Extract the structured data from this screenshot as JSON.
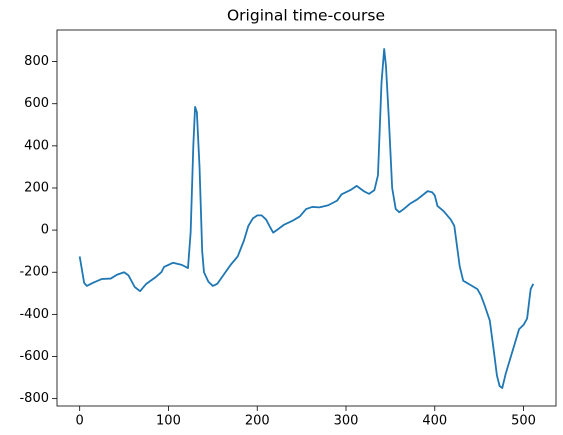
{
  "chart_data": {
    "type": "line",
    "title": "Original time-course",
    "x": [
      0,
      5,
      8,
      15,
      25,
      35,
      42,
      50,
      55,
      62,
      68,
      75,
      85,
      92,
      95,
      105,
      115,
      122,
      125,
      128,
      130,
      132,
      135,
      138,
      140,
      145,
      150,
      155,
      160,
      170,
      178,
      185,
      190,
      195,
      200,
      205,
      210,
      215,
      218,
      222,
      230,
      240,
      248,
      255,
      262,
      270,
      280,
      290,
      295,
      305,
      312,
      320,
      326,
      332,
      336,
      340,
      343,
      345,
      348,
      352,
      356,
      360,
      365,
      372,
      380,
      386,
      392,
      397,
      400,
      403,
      410,
      418,
      422,
      428,
      432,
      440,
      448,
      452,
      456,
      462,
      467,
      470,
      473,
      476,
      480,
      485,
      490,
      495,
      500,
      504,
      508,
      511
    ],
    "values": [
      -125,
      -250,
      -265,
      -250,
      -232,
      -230,
      -212,
      -200,
      -215,
      -270,
      -290,
      -255,
      -225,
      -200,
      -175,
      -155,
      -165,
      -180,
      -10,
      400,
      585,
      560,
      300,
      -100,
      -200,
      -245,
      -265,
      -255,
      -225,
      -165,
      -125,
      -50,
      20,
      55,
      70,
      70,
      50,
      10,
      -12,
      0,
      25,
      45,
      65,
      100,
      110,
      108,
      118,
      140,
      170,
      190,
      210,
      185,
      172,
      190,
      260,
      700,
      860,
      780,
      550,
      200,
      100,
      85,
      100,
      125,
      145,
      165,
      185,
      180,
      165,
      115,
      90,
      50,
      20,
      -170,
      -240,
      -260,
      -280,
      -310,
      -355,
      -430,
      -590,
      -690,
      -740,
      -750,
      -680,
      -610,
      -540,
      -470,
      -450,
      -420,
      -280,
      -255
    ],
    "color": "#1f77b4",
    "xlim": [
      -25.55,
      536.55
    ],
    "xticks": [
      0,
      100,
      200,
      300,
      400,
      500
    ],
    "ylim": [
      -835,
      950
    ],
    "yticks": [
      -800,
      -600,
      -400,
      -200,
      0,
      200,
      400,
      600,
      800
    ]
  }
}
